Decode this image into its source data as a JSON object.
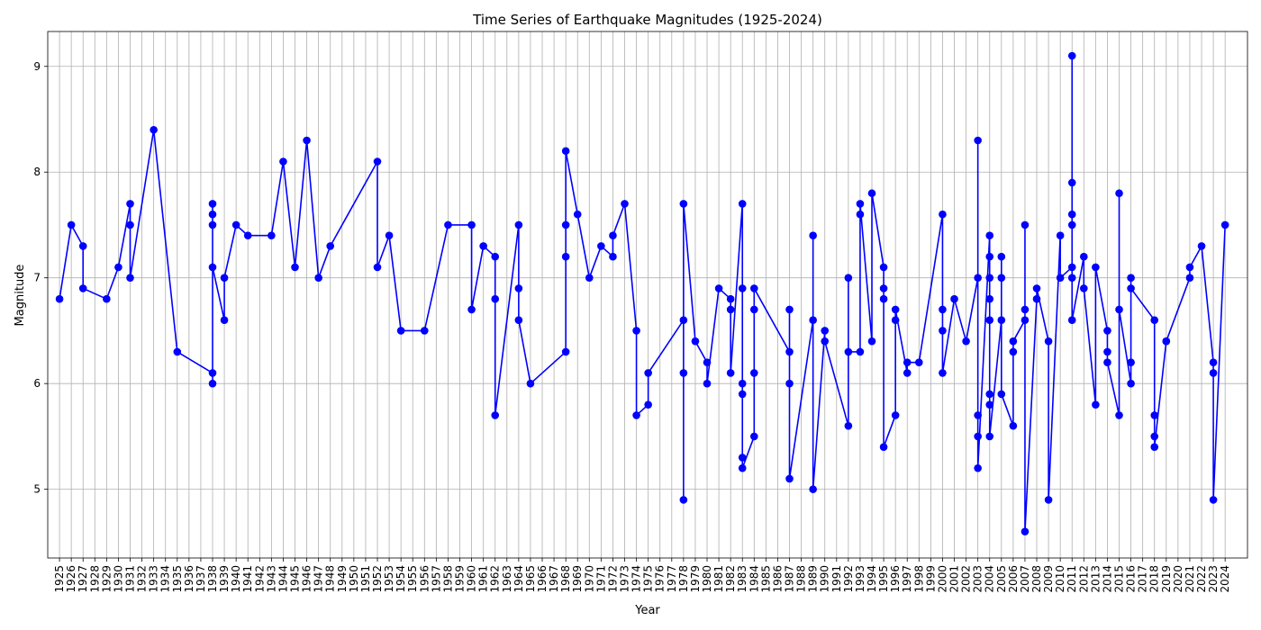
{
  "chart_data": {
    "type": "line",
    "title": "Time Series of Earthquake Magnitudes (1925-2024)",
    "xlabel": "Year",
    "ylabel": "Magnitude",
    "ylim": [
      4.35,
      9.33
    ],
    "yticks": [
      5,
      6,
      7,
      8,
      9
    ],
    "xlim": [
      1924,
      2025.9
    ],
    "xticks": [
      1925,
      1926,
      1927,
      1928,
      1929,
      1930,
      1931,
      1932,
      1933,
      1934,
      1935,
      1936,
      1937,
      1938,
      1939,
      1940,
      1941,
      1942,
      1943,
      1944,
      1945,
      1946,
      1947,
      1948,
      1949,
      1950,
      1951,
      1952,
      1953,
      1954,
      1955,
      1956,
      1957,
      1958,
      1959,
      1960,
      1961,
      1962,
      1963,
      1964,
      1965,
      1966,
      1967,
      1968,
      1969,
      1970,
      1971,
      1972,
      1973,
      1974,
      1975,
      1976,
      1977,
      1978,
      1979,
      1980,
      1981,
      1982,
      1983,
      1984,
      1985,
      1986,
      1987,
      1988,
      1989,
      1990,
      1991,
      1992,
      1993,
      1994,
      1995,
      1996,
      1997,
      1998,
      1999,
      2000,
      2001,
      2002,
      2003,
      2004,
      2005,
      2006,
      2007,
      2008,
      2009,
      2010,
      2011,
      2012,
      2013,
      2014,
      2015,
      2016,
      2017,
      2018,
      2019,
      2020,
      2021,
      2022,
      2023,
      2024
    ],
    "grid": true,
    "color": "#0000ff",
    "marker": "circle",
    "series": [
      {
        "points": [
          [
            1925,
            6.8
          ],
          [
            1926,
            7.5
          ],
          [
            1927,
            7.3
          ],
          [
            1927,
            6.9
          ],
          [
            1929,
            6.8
          ],
          [
            1930,
            7.1
          ],
          [
            1931,
            7.7
          ],
          [
            1931,
            7.5
          ],
          [
            1931,
            7.0
          ],
          [
            1933,
            8.4
          ],
          [
            1935,
            6.3
          ],
          [
            1938,
            6.1
          ],
          [
            1938,
            6.0
          ],
          [
            1938,
            7.7
          ],
          [
            1938,
            7.6
          ],
          [
            1938,
            7.5
          ],
          [
            1938,
            7.1
          ],
          [
            1939,
            6.6
          ],
          [
            1939,
            7.0
          ],
          [
            1940,
            7.5
          ],
          [
            1941,
            7.4
          ],
          [
            1943,
            7.4
          ],
          [
            1944,
            8.1
          ],
          [
            1945,
            7.1
          ],
          [
            1946,
            8.3
          ],
          [
            1947,
            7.0
          ],
          [
            1948,
            7.3
          ],
          [
            1952,
            8.1
          ],
          [
            1952,
            7.1
          ],
          [
            1953,
            7.4
          ],
          [
            1954,
            6.5
          ],
          [
            1956,
            6.5
          ],
          [
            1958,
            7.5
          ],
          [
            1960,
            7.5
          ],
          [
            1960,
            6.7
          ],
          [
            1961,
            7.3
          ],
          [
            1962,
            7.2
          ],
          [
            1962,
            6.8
          ],
          [
            1962,
            5.7
          ],
          [
            1964,
            7.5
          ],
          [
            1964,
            6.9
          ],
          [
            1964,
            6.6
          ],
          [
            1965,
            6.0
          ],
          [
            1968,
            6.3
          ],
          [
            1968,
            7.2
          ],
          [
            1968,
            7.5
          ],
          [
            1968,
            8.2
          ],
          [
            1969,
            7.6
          ],
          [
            1970,
            7.0
          ],
          [
            1971,
            7.3
          ],
          [
            1972,
            7.2
          ],
          [
            1972,
            7.4
          ],
          [
            1973,
            7.7
          ],
          [
            1974,
            6.5
          ],
          [
            1974,
            5.7
          ],
          [
            1975,
            5.8
          ],
          [
            1975,
            6.1
          ],
          [
            1978,
            6.6
          ],
          [
            1978,
            6.1
          ],
          [
            1978,
            4.9
          ],
          [
            1978,
            7.7
          ],
          [
            1979,
            6.4
          ],
          [
            1980,
            6.2
          ],
          [
            1980,
            6.0
          ],
          [
            1981,
            6.9
          ],
          [
            1982,
            6.8
          ],
          [
            1982,
            6.7
          ],
          [
            1982,
            6.1
          ],
          [
            1983,
            7.7
          ],
          [
            1983,
            6.9
          ],
          [
            1983,
            6.0
          ],
          [
            1983,
            5.9
          ],
          [
            1983,
            5.3
          ],
          [
            1983,
            5.2
          ],
          [
            1984,
            5.5
          ],
          [
            1984,
            6.1
          ],
          [
            1984,
            6.7
          ],
          [
            1984,
            6.9
          ],
          [
            1987,
            6.3
          ],
          [
            1987,
            6.7
          ],
          [
            1987,
            6.0
          ],
          [
            1987,
            5.1
          ],
          [
            1989,
            6.6
          ],
          [
            1989,
            7.4
          ],
          [
            1989,
            5.0
          ],
          [
            1990,
            6.5
          ],
          [
            1990,
            6.4
          ],
          [
            1992,
            5.6
          ],
          [
            1992,
            7.0
          ],
          [
            1992,
            6.3
          ],
          [
            1993,
            6.3
          ],
          [
            1993,
            7.6
          ],
          [
            1993,
            7.7
          ],
          [
            1994,
            6.4
          ],
          [
            1994,
            7.8
          ],
          [
            1995,
            7.1
          ],
          [
            1995,
            6.9
          ],
          [
            1995,
            6.8
          ],
          [
            1995,
            5.4
          ],
          [
            1996,
            5.7
          ],
          [
            1996,
            6.6
          ],
          [
            1996,
            6.7
          ],
          [
            1997,
            6.1
          ],
          [
            1997,
            6.2
          ],
          [
            1998,
            6.2
          ],
          [
            2000,
            7.6
          ],
          [
            2000,
            6.7
          ],
          [
            2000,
            6.5
          ],
          [
            2000,
            6.1
          ],
          [
            2001,
            6.8
          ],
          [
            2002,
            6.4
          ],
          [
            2003,
            7.0
          ],
          [
            2003,
            8.3
          ],
          [
            2003,
            5.7
          ],
          [
            2003,
            5.5
          ],
          [
            2003,
            5.2
          ],
          [
            2004,
            7.4
          ],
          [
            2004,
            7.2
          ],
          [
            2004,
            7.0
          ],
          [
            2004,
            6.8
          ],
          [
            2004,
            6.6
          ],
          [
            2004,
            5.9
          ],
          [
            2004,
            5.8
          ],
          [
            2004,
            5.5
          ],
          [
            2005,
            6.6
          ],
          [
            2005,
            7.2
          ],
          [
            2005,
            7.0
          ],
          [
            2005,
            5.9
          ],
          [
            2006,
            5.6
          ],
          [
            2006,
            6.3
          ],
          [
            2006,
            6.4
          ],
          [
            2007,
            6.6
          ],
          [
            2007,
            6.7
          ],
          [
            2007,
            7.5
          ],
          [
            2007,
            4.6
          ],
          [
            2008,
            6.8
          ],
          [
            2008,
            6.9
          ],
          [
            2009,
            6.4
          ],
          [
            2009,
            4.9
          ],
          [
            2010,
            7.4
          ],
          [
            2010,
            7.0
          ],
          [
            2011,
            7.1
          ],
          [
            2011,
            7.5
          ],
          [
            2011,
            7.6
          ],
          [
            2011,
            7.9
          ],
          [
            2011,
            9.1
          ],
          [
            2011,
            7.0
          ],
          [
            2011,
            6.6
          ],
          [
            2012,
            7.2
          ],
          [
            2012,
            6.9
          ],
          [
            2013,
            5.8
          ],
          [
            2013,
            7.1
          ],
          [
            2014,
            6.5
          ],
          [
            2014,
            6.3
          ],
          [
            2014,
            6.2
          ],
          [
            2015,
            5.7
          ],
          [
            2015,
            7.8
          ],
          [
            2015,
            6.7
          ],
          [
            2016,
            6.0
          ],
          [
            2016,
            6.2
          ],
          [
            2016,
            7.0
          ],
          [
            2016,
            6.9
          ],
          [
            2018,
            6.6
          ],
          [
            2018,
            5.7
          ],
          [
            2018,
            5.5
          ],
          [
            2018,
            5.4
          ],
          [
            2019,
            6.4
          ],
          [
            2019,
            6.4
          ],
          [
            2021,
            7.0
          ],
          [
            2021,
            7.1
          ],
          [
            2022,
            7.3
          ],
          [
            2023,
            6.2
          ],
          [
            2023,
            6.1
          ],
          [
            2023,
            4.9
          ],
          [
            2024,
            7.5
          ]
        ]
      }
    ]
  }
}
